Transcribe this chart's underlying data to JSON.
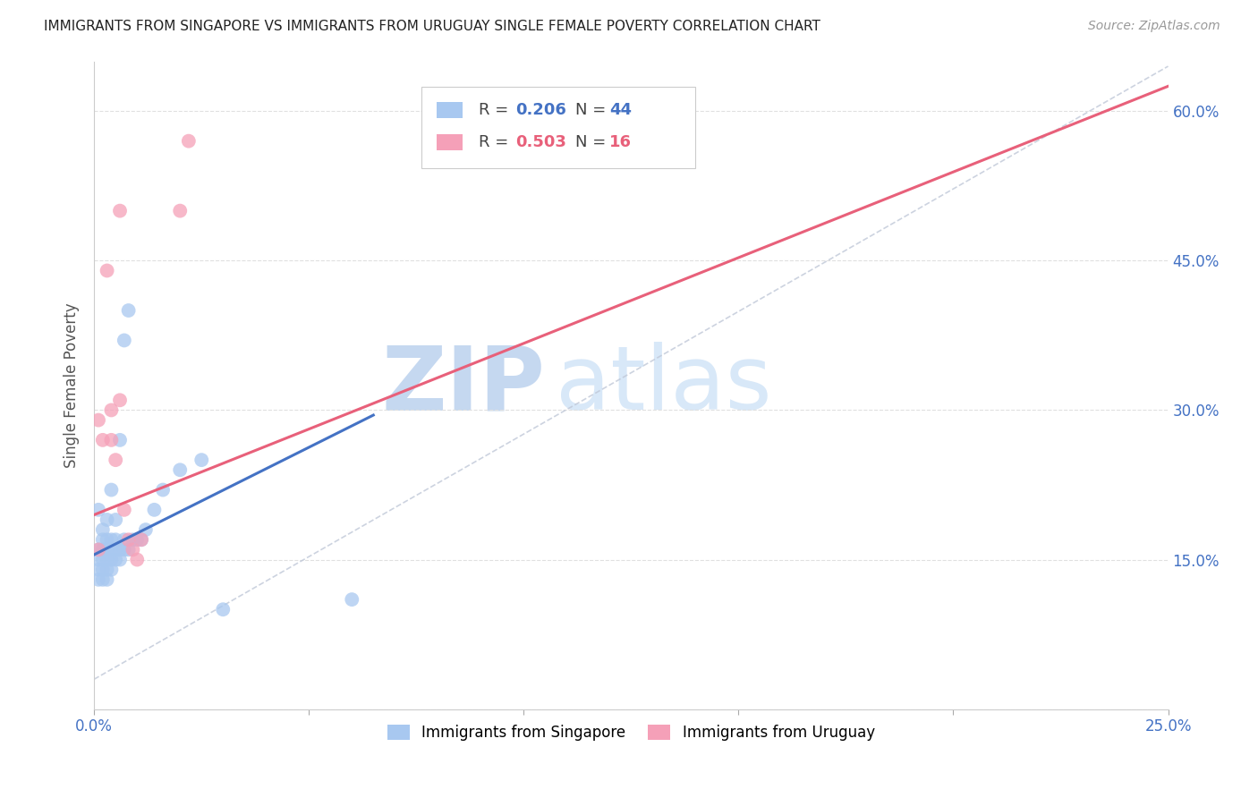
{
  "title": "IMMIGRANTS FROM SINGAPORE VS IMMIGRANTS FROM URUGUAY SINGLE FEMALE POVERTY CORRELATION CHART",
  "source": "Source: ZipAtlas.com",
  "ylabel": "Single Female Poverty",
  "xlim": [
    0.0,
    0.25
  ],
  "ylim": [
    0.0,
    0.65
  ],
  "yticks": [
    0.0,
    0.15,
    0.3,
    0.45,
    0.6
  ],
  "xticks": [
    0.0,
    0.05,
    0.1,
    0.15,
    0.2,
    0.25
  ],
  "singapore_R": 0.206,
  "singapore_N": 44,
  "uruguay_R": 0.503,
  "uruguay_N": 16,
  "singapore_color": "#a8c8f0",
  "uruguay_color": "#f5a0b8",
  "singapore_line_color": "#4472c4",
  "uruguay_line_color": "#e8607a",
  "dashed_line_color": "#c0c8d8",
  "watermark_zip_color": "#c8d8ee",
  "watermark_atlas_color": "#d8e4f4",
  "background_color": "#ffffff",
  "grid_color": "#e0e0e0",
  "title_color": "#222222",
  "label_color": "#555555",
  "tick_color": "#4472c4",
  "singapore_x": [
    0.001,
    0.001,
    0.001,
    0.001,
    0.001,
    0.002,
    0.002,
    0.002,
    0.002,
    0.002,
    0.002,
    0.003,
    0.003,
    0.003,
    0.003,
    0.003,
    0.003,
    0.004,
    0.004,
    0.004,
    0.004,
    0.004,
    0.005,
    0.005,
    0.005,
    0.005,
    0.006,
    0.006,
    0.006,
    0.007,
    0.007,
    0.007,
    0.008,
    0.008,
    0.009,
    0.01,
    0.011,
    0.012,
    0.014,
    0.016,
    0.02,
    0.025,
    0.03,
    0.06
  ],
  "singapore_y": [
    0.13,
    0.14,
    0.15,
    0.16,
    0.2,
    0.13,
    0.14,
    0.15,
    0.16,
    0.17,
    0.18,
    0.13,
    0.14,
    0.15,
    0.16,
    0.17,
    0.19,
    0.14,
    0.15,
    0.16,
    0.17,
    0.22,
    0.15,
    0.16,
    0.17,
    0.19,
    0.15,
    0.16,
    0.27,
    0.16,
    0.17,
    0.37,
    0.16,
    0.4,
    0.17,
    0.17,
    0.17,
    0.18,
    0.2,
    0.22,
    0.24,
    0.25,
    0.1,
    0.11
  ],
  "uruguay_x": [
    0.001,
    0.001,
    0.002,
    0.003,
    0.004,
    0.004,
    0.005,
    0.006,
    0.006,
    0.007,
    0.008,
    0.009,
    0.01,
    0.011,
    0.02,
    0.022
  ],
  "uruguay_y": [
    0.16,
    0.29,
    0.27,
    0.44,
    0.27,
    0.3,
    0.25,
    0.31,
    0.5,
    0.2,
    0.17,
    0.16,
    0.15,
    0.17,
    0.5,
    0.57
  ],
  "sg_line_x0": 0.0,
  "sg_line_x1": 0.065,
  "sg_line_y0": 0.155,
  "sg_line_y1": 0.295,
  "ug_line_x0": 0.0,
  "ug_line_x1": 0.25,
  "ug_line_y0": 0.195,
  "ug_line_y1": 0.625
}
